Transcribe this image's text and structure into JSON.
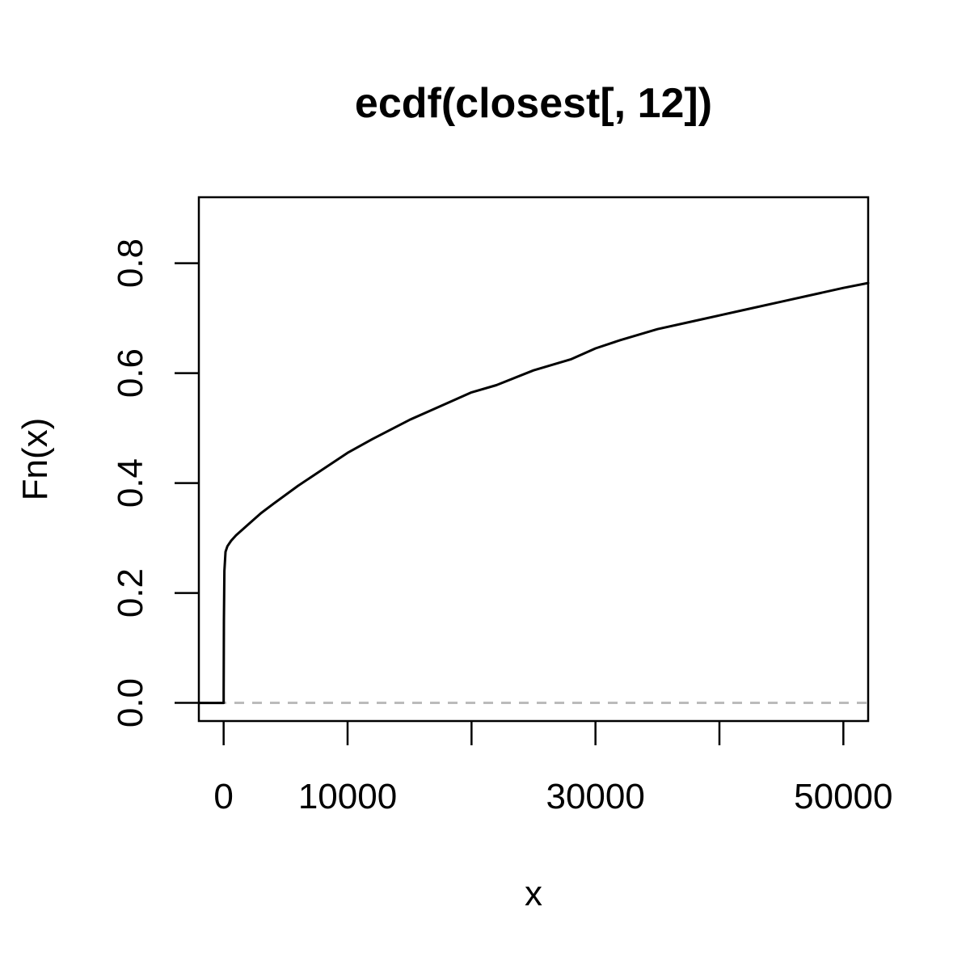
{
  "chart_data": {
    "type": "line",
    "title": "ecdf(closest[, 12])",
    "xlabel": "x",
    "ylabel": "Fn(x)",
    "xlim": [
      -2000,
      52000
    ],
    "ylim": [
      -0.033,
      0.92
    ],
    "x_ticks": [
      0,
      10000,
      20000,
      30000,
      40000,
      50000
    ],
    "x_tick_labels": [
      "0",
      "10000",
      "",
      "30000",
      "",
      "50000"
    ],
    "y_ticks": [
      0.0,
      0.2,
      0.4,
      0.6,
      0.8
    ],
    "y_tick_labels": [
      "0.0",
      "0.2",
      "0.4",
      "0.6",
      "0.8"
    ],
    "baseline": {
      "y": 0,
      "style": "dashed",
      "color": "#bbbbbb"
    },
    "grid": false,
    "series": [
      {
        "color": "#000000",
        "x": [
          -2000,
          0,
          0,
          20,
          60,
          150,
          300,
          600,
          1000,
          2000,
          3000,
          4000,
          6000,
          8000,
          10000,
          12000,
          15000,
          18000,
          20000,
          22000,
          25000,
          28000,
          30000,
          32000,
          35000,
          38000,
          40000,
          42000,
          45000,
          48000,
          50000,
          52000
        ],
        "y": [
          0,
          0,
          0.02,
          0.15,
          0.24,
          0.275,
          0.285,
          0.295,
          0.305,
          0.325,
          0.345,
          0.362,
          0.395,
          0.425,
          0.455,
          0.48,
          0.515,
          0.545,
          0.565,
          0.578,
          0.605,
          0.625,
          0.645,
          0.66,
          0.68,
          0.695,
          0.705,
          0.715,
          0.73,
          0.745,
          0.755,
          0.764
        ]
      }
    ]
  }
}
